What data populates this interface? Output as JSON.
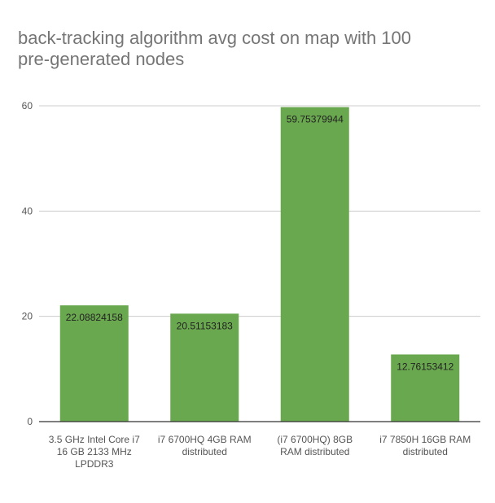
{
  "chart_data": {
    "type": "bar",
    "title_lines": [
      "back-tracking algorithm avg cost on map with 100",
      "pre-generated nodes"
    ],
    "categories": [
      [
        "3.5 GHz Intel Core i7",
        "16 GB 2133 MHz",
        "LPDDR3"
      ],
      [
        "i7 6700HQ 4GB RAM",
        "distributed"
      ],
      [
        "(i7 6700HQ) 8GB",
        "RAM distributed"
      ],
      [
        "i7 7850H 16GB RAM",
        "distributed"
      ]
    ],
    "values": [
      22.08824158,
      20.51153183,
      59.75379944,
      12.76153412
    ],
    "data_labels": [
      "22.08824158",
      "20.51153183",
      "59.75379944",
      "12.76153412"
    ],
    "xlabel": "",
    "ylabel": "",
    "ylim": [
      0,
      60
    ],
    "yticks": [
      0,
      20,
      40,
      60
    ],
    "grid": true,
    "legend": "none",
    "colors": {
      "bar": "#6aa84f",
      "grid": "#cccccc",
      "axis": "#333333",
      "title": "#757575"
    }
  }
}
